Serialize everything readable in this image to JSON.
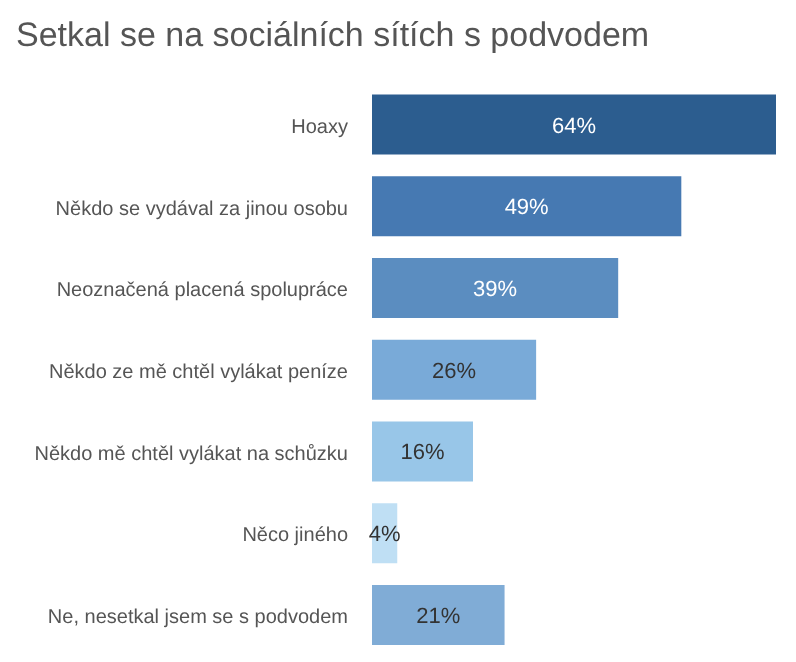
{
  "chart_data": {
    "type": "bar",
    "orientation": "horizontal",
    "title": "Setkal se na sociálních sítích s podvodem",
    "categories": [
      "Hoaxy",
      "Někdo se vydával za jinou osobu",
      "Neoznačená placená spolupráce",
      "Někdo ze mě chtěl vylákat peníze",
      "Někdo mě chtěl vylákat na schůzku",
      "Něco jiného",
      "Ne, nesetkal jsem se s podvodem"
    ],
    "values": [
      64,
      49,
      39,
      26,
      16,
      4,
      21
    ],
    "colors": [
      "#2c5d8f",
      "#4679b2",
      "#5b8dc0",
      "#79aad8",
      "#98c6e8",
      "#bfdff4",
      "#80acd6"
    ],
    "value_labels": [
      "64%",
      "49%",
      "39%",
      "26%",
      "16%",
      "4%",
      "21%"
    ],
    "tick_labels": "y"
  }
}
